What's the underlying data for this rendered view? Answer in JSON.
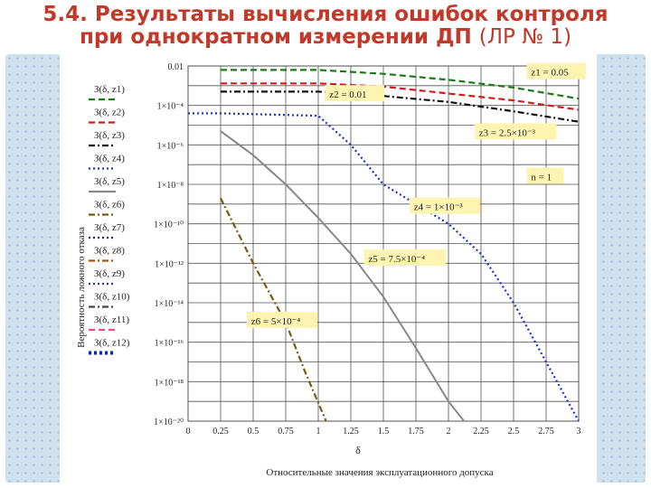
{
  "slide": {
    "title_line1": "5.4. Результаты вычисления ошибок контроля",
    "title_line2": "при однократном измерении ДП",
    "title_paren": "(ЛР № 1)"
  },
  "chart_data": {
    "type": "line",
    "title": "",
    "xlabel": "δ",
    "xlabel_caption": "Относительные значения эксплуатационного допуска",
    "ylabel": "Вероятность ложного отказа",
    "xlim": [
      0,
      3
    ],
    "ylim": [
      1e-20,
      0.01
    ],
    "y_scale": "log",
    "grid": true,
    "x_ticks": [
      "0",
      "0.25",
      "0.5",
      "0.75",
      "1",
      "1.25",
      "1.5",
      "1.75",
      "2",
      "2.25",
      "2.5",
      "2.75",
      "3"
    ],
    "y_ticks": [
      {
        "value": 0.01,
        "label": "0.01"
      },
      {
        "value": 0.0001,
        "label": "1×10⁻⁴"
      },
      {
        "value": 1e-06,
        "label": "1×10⁻⁶"
      },
      {
        "value": 1e-08,
        "label": "1×10⁻⁸"
      },
      {
        "value": 1e-10,
        "label": "1×10⁻¹⁰"
      },
      {
        "value": 1e-12,
        "label": "1×10⁻¹²"
      },
      {
        "value": 1e-14,
        "label": "1×10⁻¹⁴"
      },
      {
        "value": 1e-16,
        "label": "1×10⁻¹⁶"
      },
      {
        "value": 1e-18,
        "label": "1×10⁻¹⁸"
      },
      {
        "value": 1e-20,
        "label": "1×10⁻²⁰"
      }
    ],
    "legend_placement": "left",
    "legend": [
      {
        "label": "З(δ, z1)",
        "color": "#1a7a1a",
        "dash": "dash"
      },
      {
        "label": "З(δ, z2)",
        "color": "#d41a1a",
        "dash": "dash"
      },
      {
        "label": "З(δ, z3)",
        "color": "#111111",
        "dash": "dashdot"
      },
      {
        "label": "З(δ, z4)",
        "color": "#1a33cc",
        "dash": "dot"
      },
      {
        "label": "З(δ, z5)",
        "color": "#888888",
        "dash": "solid"
      },
      {
        "label": "З(δ, z6)",
        "color": "#7a5a10",
        "dash": "dashdot"
      },
      {
        "label": "З(δ, z7)",
        "color": "#222288",
        "dash": "dot"
      },
      {
        "label": "З(δ, z8)",
        "color": "#b05010",
        "dash": "dashdot"
      },
      {
        "label": "З(δ, z9)",
        "color": "#333399",
        "dash": "dot"
      },
      {
        "label": "З(δ, z10)",
        "color": "#444444",
        "dash": "dashdot"
      },
      {
        "label": "З(δ, z11)",
        "color": "#e0508a",
        "dash": "dash"
      },
      {
        "label": "З(δ, z12)",
        "color": "#0a2aa0",
        "dash": "thickdot"
      }
    ],
    "series": [
      {
        "name": "z1",
        "color": "#1a7a1a",
        "dash": "dash",
        "x": [
          0.25,
          1,
          1.5,
          2,
          2.5,
          3
        ],
        "y": [
          0.0063,
          0.0063,
          0.004,
          0.002,
          0.0008,
          0.00022
        ]
      },
      {
        "name": "z2",
        "color": "#d41a1a",
        "dash": "dash",
        "x": [
          0.25,
          1,
          1.5,
          2,
          2.5,
          3
        ],
        "y": [
          0.0013,
          0.0013,
          0.0009,
          0.0004,
          0.00018,
          6e-05
        ]
      },
      {
        "name": "z3",
        "color": "#111111",
        "dash": "dashdot",
        "x": [
          0.25,
          1,
          1.5,
          2,
          2.5,
          3
        ],
        "y": [
          0.0005,
          0.0005,
          0.0003,
          0.00015,
          5e-05,
          1.5e-05
        ]
      },
      {
        "name": "z4",
        "color": "#1a33cc",
        "dash": "dot",
        "x": [
          0.0,
          0.25,
          1,
          1.25,
          1.5,
          1.75,
          2,
          2.25,
          2.5,
          2.75,
          3
        ],
        "y": [
          4e-05,
          4e-05,
          3e-05,
          1e-06,
          1e-08,
          1e-09,
          1e-10,
          3e-12,
          1e-14,
          1e-17,
          1e-20
        ]
      },
      {
        "name": "z5",
        "color": "#888888",
        "dash": "solid",
        "x": [
          0.25,
          0.5,
          0.75,
          1,
          1.25,
          1.5,
          1.75,
          2,
          2.12
        ],
        "y": [
          5e-06,
          3e-07,
          1e-08,
          2e-10,
          3e-12,
          2e-14,
          5e-17,
          1e-19,
          1e-20
        ]
      },
      {
        "name": "z6",
        "color": "#7a5a10",
        "dash": "dashdot",
        "x": [
          0.25,
          0.5,
          0.75,
          0.9,
          1.06
        ],
        "y": [
          2e-09,
          1e-12,
          1e-15,
          3e-18,
          1e-20
        ]
      }
    ],
    "annotations": [
      {
        "text": "z1 = 0.05",
        "x": 2.6,
        "y": 0.004
      },
      {
        "text": "z2 = 0.01",
        "x": 1.05,
        "y": 0.0003
      },
      {
        "text": "z3 = 2.5×10⁻³",
        "x": 2.2,
        "y": 3.5e-06
      },
      {
        "text": "n = 1",
        "x": 2.6,
        "y": 2e-08
      },
      {
        "text": "z4 = 1×10⁻³",
        "x": 1.7,
        "y": 6e-10
      },
      {
        "text": "z5 = 7.5×10⁻⁴",
        "x": 1.35,
        "y": 1.4e-12
      },
      {
        "text": "z6 = 5×10⁻⁴",
        "x": 0.45,
        "y": 1e-15
      }
    ]
  }
}
